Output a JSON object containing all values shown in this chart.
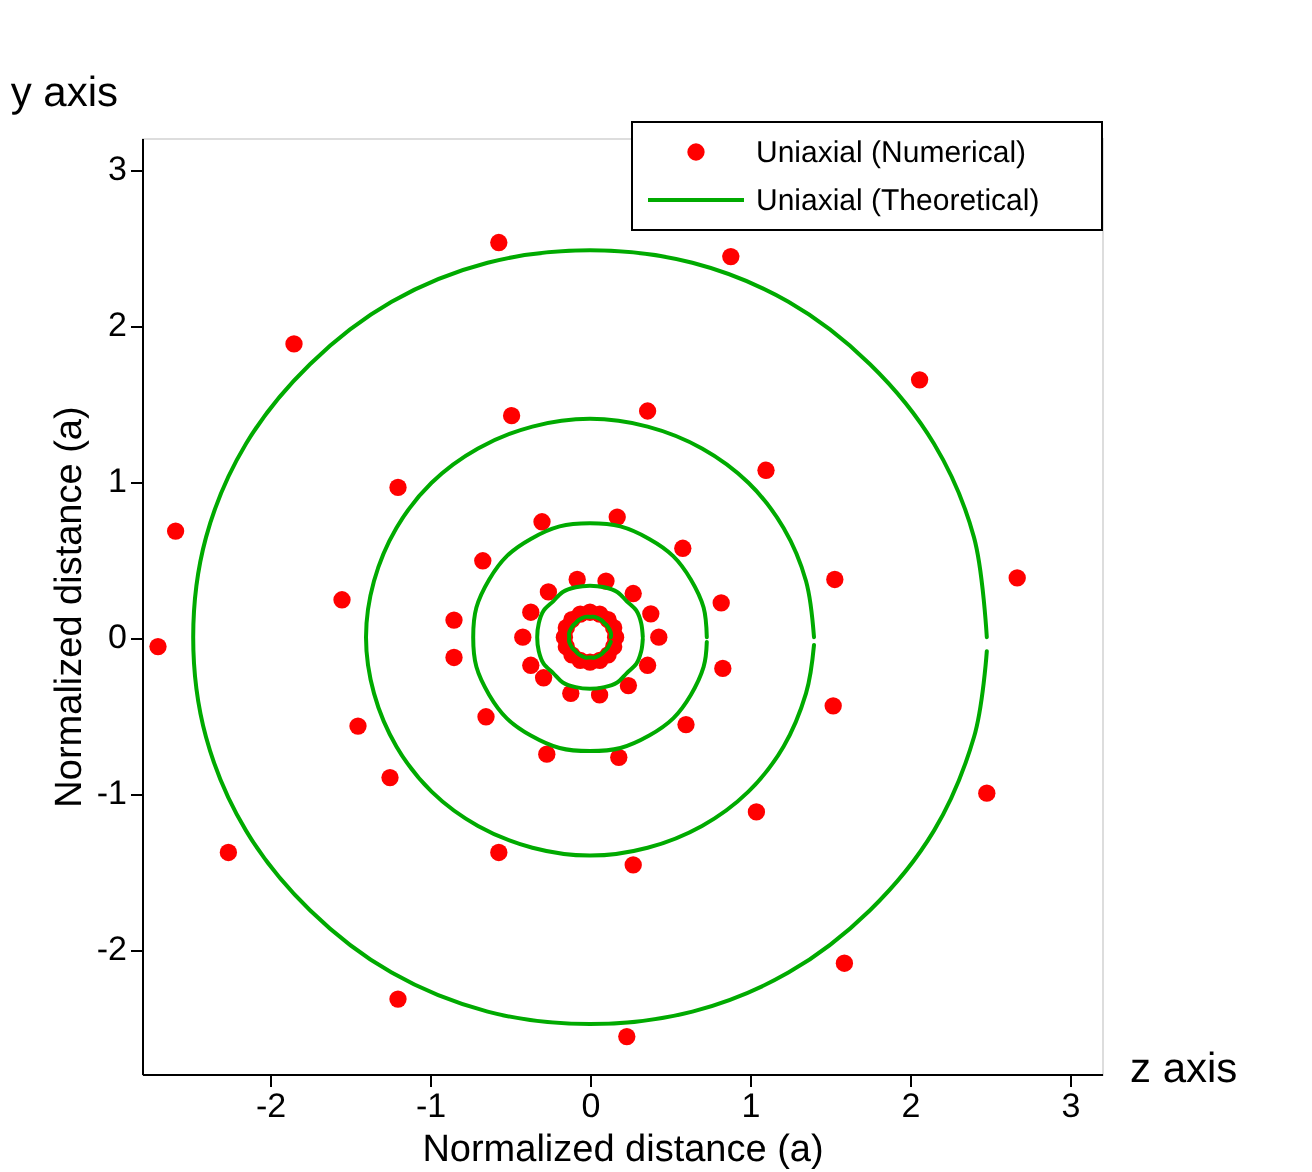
{
  "chart_data": {
    "type": "scatter",
    "xlabel": "Normalized distance (a)",
    "ylabel": "Normalized distance (a)",
    "annotations": [
      "y axis",
      "z axis"
    ],
    "xlim": [
      -2.8,
      3.2
    ],
    "ylim": [
      -2.8,
      3.2
    ],
    "xticks": [
      -2,
      -1,
      0,
      1,
      2,
      3
    ],
    "yticks": [
      -2,
      -1,
      0,
      1,
      2,
      3
    ],
    "grid": false,
    "legend": "top right",
    "series": [
      {
        "name": "Uniaxial (Numerical)",
        "marker": "circle",
        "color": "#ff0000",
        "x": [
          -0.57,
          0.88,
          -1.85,
          2.06,
          -2.59,
          2.67,
          -2.7,
          2.48,
          -2.26,
          1.59,
          -1.2,
          0.23,
          -0.49,
          0.36,
          -1.2,
          1.1,
          -1.55,
          1.53,
          -1.45,
          1.52,
          -1.25,
          1.04,
          -0.57,
          0.27,
          -0.3,
          0.17,
          -0.67,
          0.58,
          -0.85,
          0.82,
          -0.85,
          0.83,
          -0.65,
          0.6,
          -0.27,
          0.18,
          -0.08,
          0.1,
          -0.26,
          0.27,
          -0.37,
          0.38,
          -0.42,
          0.43,
          -0.37,
          0.36,
          -0.29,
          0.24,
          -0.12,
          0.06,
          0.16,
          0.148,
          0.113,
          0.061,
          0,
          -0.061,
          -0.113,
          -0.148,
          -0.16,
          -0.148,
          -0.113,
          -0.061,
          0,
          0.061,
          0.113,
          0.148
        ],
        "values": [
          2.53,
          2.44,
          1.88,
          1.65,
          0.68,
          0.38,
          -0.06,
          -1.0,
          -1.38,
          -2.09,
          -2.32,
          -2.56,
          1.42,
          1.45,
          0.96,
          1.07,
          0.24,
          0.37,
          -0.57,
          -0.44,
          -0.9,
          -1.12,
          -1.38,
          -1.46,
          0.74,
          0.77,
          0.49,
          0.57,
          0.11,
          0.22,
          -0.13,
          -0.2,
          -0.51,
          -0.56,
          -0.75,
          -0.77,
          0.37,
          0.36,
          0.29,
          0.28,
          0.16,
          0.15,
          0.0,
          0.0,
          -0.18,
          -0.18,
          -0.26,
          -0.31,
          -0.36,
          -0.37,
          0,
          0.061,
          0.113,
          0.148,
          0.16,
          0.148,
          0.113,
          0.061,
          0,
          -0.061,
          -0.113,
          -0.148,
          -0.16,
          -0.148,
          -0.113,
          -0.061
        ]
      },
      {
        "name": "Uniaxial (Theoretical)",
        "type": "line",
        "color": "#00aa00",
        "x": [
          2.48,
          2.4,
          2.15,
          1.75,
          1.24,
          0.64,
          0,
          -0.64,
          -1.24,
          -1.75,
          -2.15,
          -2.4,
          -2.48,
          -2.4,
          -2.15,
          -1.75,
          -1.24,
          -0.64,
          0,
          0.64,
          1.24,
          1.75,
          2.15,
          2.4,
          2.48
        ],
        "values": [
          0,
          0.64,
          1.24,
          1.75,
          2.15,
          2.4,
          2.48,
          2.4,
          2.15,
          1.75,
          1.24,
          0.64,
          0,
          -0.64,
          -1.24,
          -1.75,
          -2.15,
          -2.4,
          -2.48,
          -2.4,
          -2.15,
          -1.75,
          -1.24,
          -0.64,
          -0.09
        ]
      },
      {
        "type": "line",
        "color": "#00aa00",
        "x": [
          1.4,
          1.35,
          1.21,
          0.99,
          0.7,
          0.36,
          0,
          -0.36,
          -0.7,
          -0.99,
          -1.21,
          -1.35,
          -1.4,
          -1.35,
          -1.21,
          -0.99,
          -0.7,
          -0.36,
          0,
          0.36,
          0.7,
          0.99,
          1.21,
          1.35,
          1.4
        ],
        "values": [
          0,
          0.36,
          0.7,
          0.99,
          1.21,
          1.35,
          1.4,
          1.35,
          1.21,
          0.99,
          0.7,
          0.36,
          0,
          -0.36,
          -0.7,
          -0.99,
          -1.21,
          -1.35,
          -1.4,
          -1.35,
          -1.21,
          -0.99,
          -0.7,
          -0.36,
          -0.05
        ]
      },
      {
        "type": "line",
        "color": "#00aa00",
        "x": [
          0.73,
          0.71,
          0.63,
          0.52,
          0.37,
          0.19,
          0,
          -0.19,
          -0.37,
          -0.52,
          -0.63,
          -0.71,
          -0.73,
          -0.71,
          -0.63,
          -0.52,
          -0.37,
          -0.19,
          0,
          0.19,
          0.37,
          0.52,
          0.63,
          0.71,
          0.73
        ],
        "values": [
          0,
          0.19,
          0.37,
          0.52,
          0.63,
          0.71,
          0.73,
          0.71,
          0.63,
          0.52,
          0.37,
          0.19,
          0,
          -0.19,
          -0.37,
          -0.52,
          -0.63,
          -0.71,
          -0.73,
          -0.71,
          -0.63,
          -0.52,
          -0.37,
          -0.19,
          -0.03
        ]
      },
      {
        "type": "line",
        "color": "#00aa00",
        "x": [
          0.33,
          0.32,
          0.29,
          0.23,
          0.17,
          0.09,
          0,
          -0.09,
          -0.17,
          -0.23,
          -0.29,
          -0.32,
          -0.33,
          -0.32,
          -0.29,
          -0.23,
          -0.17,
          -0.09,
          0,
          0.09,
          0.17,
          0.23,
          0.29,
          0.32,
          0.33
        ],
        "values": [
          0,
          0.09,
          0.17,
          0.23,
          0.29,
          0.32,
          0.33,
          0.32,
          0.29,
          0.23,
          0.17,
          0.09,
          0,
          -0.09,
          -0.17,
          -0.23,
          -0.29,
          -0.32,
          -0.33,
          -0.32,
          -0.29,
          -0.23,
          -0.17,
          -0.09,
          -0.01
        ]
      },
      {
        "type": "line",
        "color": "#00aa00",
        "x": [
          0.13,
          0.13,
          0.11,
          0.09,
          0.07,
          0.03,
          0,
          -0.03,
          -0.07,
          -0.09,
          -0.11,
          -0.13,
          -0.13,
          -0.13,
          -0.11,
          -0.09,
          -0.07,
          -0.03,
          0,
          0.03,
          0.07,
          0.09,
          0.11,
          0.13
        ],
        "values": [
          0,
          0.03,
          0.07,
          0.09,
          0.11,
          0.13,
          0.13,
          0.13,
          0.11,
          0.09,
          0.07,
          0.03,
          0,
          -0.03,
          -0.07,
          -0.09,
          -0.11,
          -0.13,
          -0.13,
          -0.13,
          -0.11,
          -0.09,
          -0.07,
          -0.03
        ]
      }
    ]
  }
}
